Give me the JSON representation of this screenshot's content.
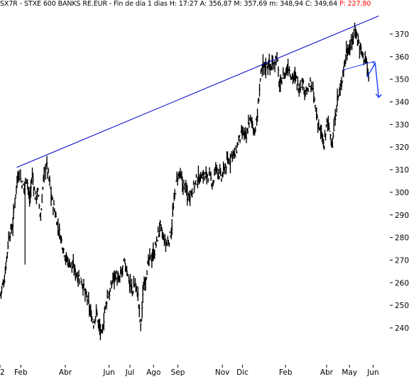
{
  "header": {
    "title": "SX7R - STXE 600 BANKS RE.EUR - Fin de dia 1 dias",
    "h": "H: 17:27",
    "a": "A: 356,87",
    "m": "M: 357,69",
    "min": "m: 348,94",
    "c": "C: 349,64",
    "p": "P: 227,80"
  },
  "colors": {
    "background": "#ffffff",
    "price": "#000000",
    "trendline": "#0000cc",
    "projection": "#1a3cff",
    "negative": "#ff0000",
    "tick": "#000000"
  },
  "chart_data": {
    "type": "bar",
    "subtype": "ohlc-daily",
    "title": "SX7R - STXE 600 BANKS RE.EUR - Fin de dia 1 dias",
    "xlabel": "",
    "ylabel": "",
    "ylim": [
      232,
      380
    ],
    "ytick_values": [
      240,
      250,
      260,
      270,
      280,
      290,
      300,
      310,
      320,
      330,
      340,
      350,
      360,
      370
    ],
    "yticks": [
      "240",
      "250",
      "260",
      "270",
      "280",
      "290",
      "300",
      "310",
      "320",
      "330",
      "340",
      "350",
      "360",
      "370"
    ],
    "xticks": [
      {
        "label": "2",
        "pos": 0
      },
      {
        "label": "Feb",
        "pos": 30
      },
      {
        "label": "Abr",
        "pos": 94
      },
      {
        "label": "Jun",
        "pos": 157
      },
      {
        "label": "Jul",
        "pos": 187
      },
      {
        "label": "Ago",
        "pos": 221
      },
      {
        "label": "Sep",
        "pos": 256
      },
      {
        "label": "Nov",
        "pos": 320
      },
      {
        "label": "Dic",
        "pos": 349
      },
      {
        "label": "Feb",
        "pos": 411
      },
      {
        "label": "Abr",
        "pos": 470
      },
      {
        "label": "May",
        "pos": 503
      },
      {
        "label": "Jun",
        "pos": 537
      }
    ],
    "xlim": [
      0,
      560
    ],
    "series": [
      {
        "values": [
          [
            0,
            255
          ],
          [
            6,
            262
          ],
          [
            12,
            280
          ],
          [
            18,
            286
          ],
          [
            22,
            300
          ],
          [
            26,
            309
          ],
          [
            30,
            305
          ],
          [
            34,
            302
          ],
          [
            38,
            307
          ],
          [
            42,
            296
          ],
          [
            46,
            308
          ],
          [
            50,
            298
          ],
          [
            54,
            300
          ],
          [
            58,
            288
          ],
          [
            62,
            306
          ],
          [
            66,
            313
          ],
          [
            70,
            306
          ],
          [
            74,
            297
          ],
          [
            78,
            292
          ],
          [
            82,
            286
          ],
          [
            86,
            281
          ],
          [
            90,
            276
          ],
          [
            94,
            271
          ],
          [
            98,
            269
          ],
          [
            102,
            268
          ],
          [
            106,
            266
          ],
          [
            110,
            264
          ],
          [
            114,
            262
          ],
          [
            118,
            260
          ],
          [
            122,
            255
          ],
          [
            126,
            252
          ],
          [
            130,
            246
          ],
          [
            134,
            242
          ],
          [
            138,
            247
          ],
          [
            142,
            241
          ],
          [
            146,
            236
          ],
          [
            150,
            247
          ],
          [
            154,
            254
          ],
          [
            158,
            256
          ],
          [
            162,
            262
          ],
          [
            166,
            264
          ],
          [
            170,
            260
          ],
          [
            174,
            264
          ],
          [
            178,
            269
          ],
          [
            182,
            266
          ],
          [
            186,
            260
          ],
          [
            190,
            256
          ],
          [
            194,
            260
          ],
          [
            198,
            254
          ],
          [
            202,
            240
          ],
          [
            206,
            258
          ],
          [
            210,
            264
          ],
          [
            214,
            270
          ],
          [
            218,
            271
          ],
          [
            222,
            274
          ],
          [
            226,
            280
          ],
          [
            230,
            285
          ],
          [
            234,
            280
          ],
          [
            238,
            277
          ],
          [
            242,
            278
          ],
          [
            246,
            283
          ],
          [
            250,
            296
          ],
          [
            254,
            306
          ],
          [
            258,
            308
          ],
          [
            262,
            304
          ],
          [
            266,
            302
          ],
          [
            270,
            298
          ],
          [
            274,
            300
          ],
          [
            278,
            302
          ],
          [
            282,
            305
          ],
          [
            286,
            306
          ],
          [
            290,
            308
          ],
          [
            294,
            307
          ],
          [
            298,
            308
          ],
          [
            302,
            306
          ],
          [
            306,
            304
          ],
          [
            310,
            311
          ],
          [
            314,
            309
          ],
          [
            318,
            306
          ],
          [
            322,
            310
          ],
          [
            326,
            313
          ],
          [
            330,
            314
          ],
          [
            334,
            318
          ],
          [
            338,
            316
          ],
          [
            342,
            322
          ],
          [
            346,
            325
          ],
          [
            350,
            326
          ],
          [
            354,
            324
          ],
          [
            358,
            332
          ],
          [
            362,
            331
          ],
          [
            366,
            327
          ],
          [
            370,
            334
          ],
          [
            374,
            350
          ],
          [
            378,
            356
          ],
          [
            382,
            356
          ],
          [
            386,
            357
          ],
          [
            390,
            355
          ],
          [
            394,
            358
          ],
          [
            398,
            360
          ],
          [
            402,
            346
          ],
          [
            406,
            351
          ],
          [
            410,
            352
          ],
          [
            414,
            356
          ],
          [
            418,
            352
          ],
          [
            422,
            351
          ],
          [
            426,
            350
          ],
          [
            430,
            346
          ],
          [
            434,
            349
          ],
          [
            438,
            346
          ],
          [
            442,
            344
          ],
          [
            446,
            348
          ],
          [
            450,
            344
          ],
          [
            454,
            336
          ],
          [
            458,
            330
          ],
          [
            462,
            325
          ],
          [
            466,
            320
          ],
          [
            470,
            332
          ],
          [
            474,
            327
          ],
          [
            478,
            321
          ],
          [
            482,
            334
          ],
          [
            486,
            342
          ],
          [
            490,
            346
          ],
          [
            494,
            355
          ],
          [
            498,
            362
          ],
          [
            502,
            364
          ],
          [
            506,
            366
          ],
          [
            510,
            373
          ],
          [
            514,
            368
          ],
          [
            518,
            364
          ],
          [
            522,
            360
          ],
          [
            526,
            359
          ],
          [
            530,
            350
          ]
        ]
      }
    ],
    "annotations": [
      {
        "type": "trendline",
        "from": [
          24,
          311
        ],
        "to": [
          545,
          378
        ]
      },
      {
        "type": "neckline",
        "from": [
          492,
          354
        ],
        "to": [
          540,
          358
        ]
      },
      {
        "type": "projection-arrow",
        "points": [
          [
            528,
            351
          ],
          [
            540,
            357
          ],
          [
            545,
            342
          ]
        ]
      }
    ]
  }
}
